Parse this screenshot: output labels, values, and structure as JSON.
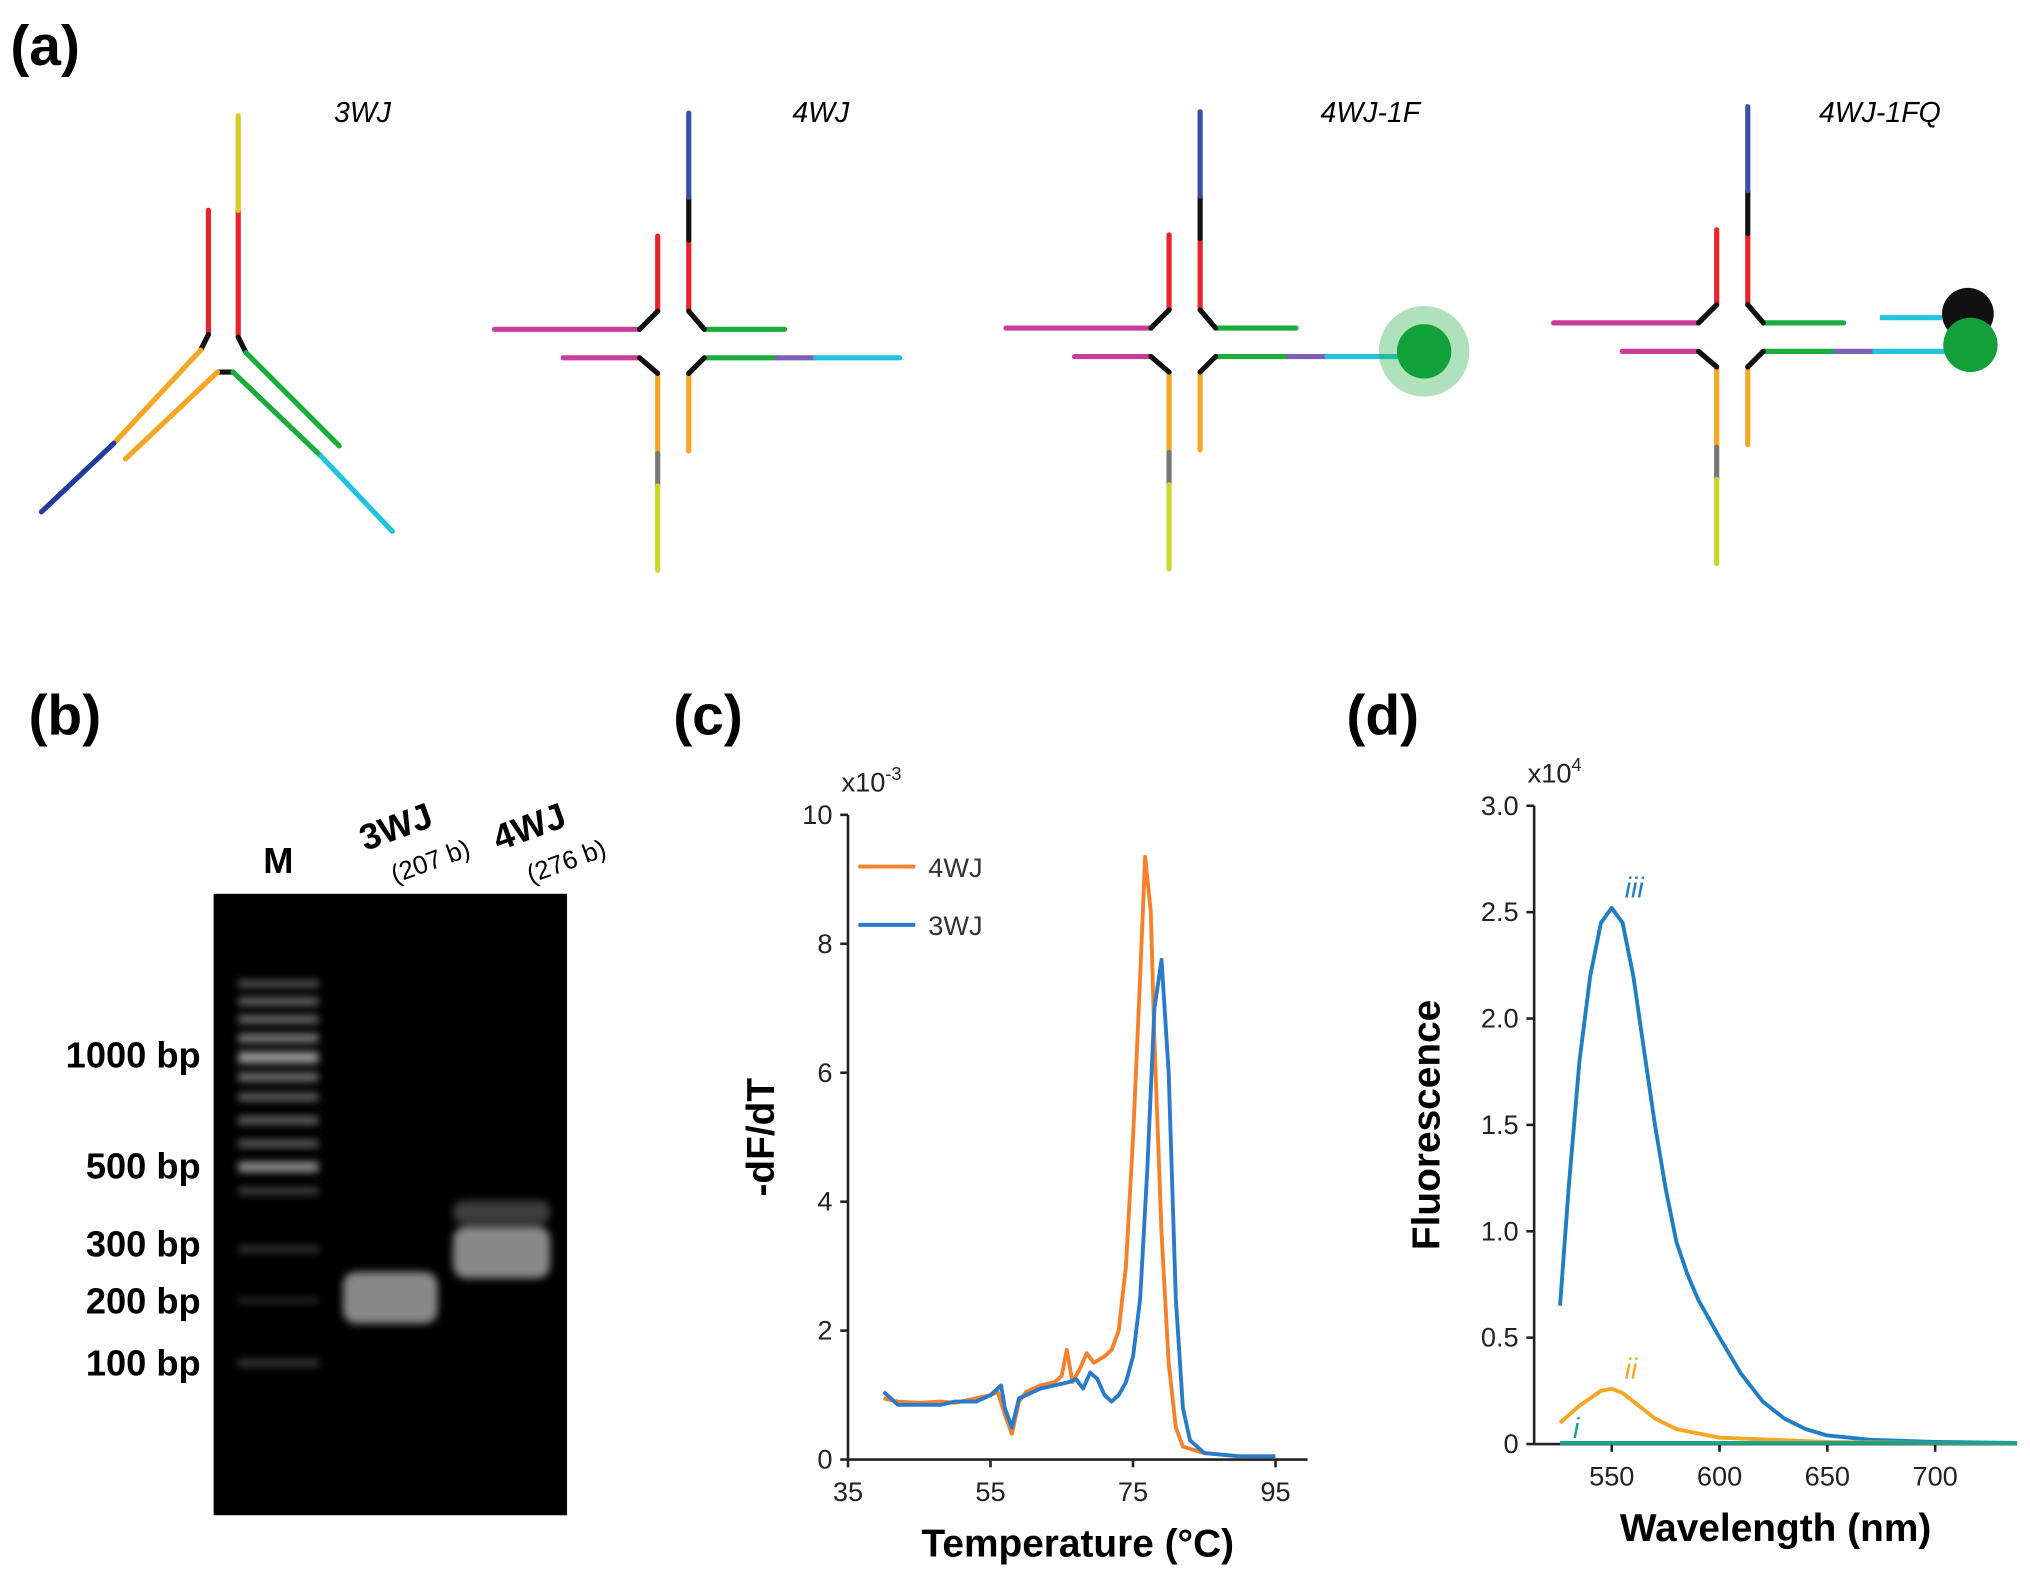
{
  "panels": [
    "(a)",
    "(b)",
    "(c)",
    "(d)"
  ],
  "diagram": {
    "labels": [
      "3WJ",
      "4WJ",
      "4WJ-1F",
      "4WJ-1FQ"
    ]
  },
  "gel": {
    "lanes": [
      "M",
      "3WJ",
      "4WJ"
    ],
    "lane_sizes": [
      "(207 b)",
      "(276 b)"
    ],
    "ladder": [
      "1000 bp",
      "500 bp",
      "300 bp",
      "200 bp",
      "100 bp"
    ]
  },
  "chart_data": [
    {
      "type": "line",
      "x_label": "Temperature (°C)",
      "y_label": "-dF/dT",
      "multiplier": {
        "base": "x10",
        "exponent": "-3"
      },
      "xlim": [
        35,
        99.5
      ],
      "ylim": [
        0,
        10
      ],
      "xticks": [
        35,
        55,
        75,
        95
      ],
      "yticks": [
        0,
        2,
        4,
        6,
        8,
        10
      ],
      "legend": "upper left",
      "series": [
        {
          "name": "4WJ",
          "color": "#f5822a",
          "x": [
            40,
            42,
            45,
            48,
            50,
            53,
            55,
            56,
            57,
            58,
            59,
            60,
            62,
            64,
            65,
            65.7,
            66.5,
            67.5,
            68.5,
            69.5,
            71,
            72,
            73,
            74,
            75,
            76,
            76.7,
            77.5,
            78,
            79,
            80,
            81,
            82,
            85,
            90,
            95
          ],
          "values": [
            0.95,
            0.9,
            0.88,
            0.9,
            0.88,
            0.95,
            1.0,
            1.05,
            0.7,
            0.4,
            0.9,
            1.05,
            1.15,
            1.2,
            1.3,
            1.7,
            1.2,
            1.4,
            1.65,
            1.5,
            1.6,
            1.7,
            2.0,
            3.0,
            5.0,
            7.5,
            9.35,
            8.5,
            6.5,
            3.5,
            1.5,
            0.5,
            0.2,
            0.1,
            0.05,
            0.05
          ]
        },
        {
          "name": "3WJ",
          "color": "#2a7bcc",
          "x": [
            40,
            42,
            45,
            48,
            50,
            53,
            55,
            56.5,
            57,
            58,
            59,
            60,
            62,
            64,
            66,
            67,
            68,
            69,
            70,
            71,
            72,
            73,
            74,
            75,
            76,
            77,
            78,
            79,
            80,
            81,
            82,
            83,
            85,
            90,
            95
          ],
          "values": [
            1.05,
            0.85,
            0.85,
            0.85,
            0.9,
            0.9,
            1.0,
            1.15,
            0.8,
            0.5,
            0.95,
            1.0,
            1.1,
            1.15,
            1.2,
            1.25,
            1.1,
            1.35,
            1.25,
            1.0,
            0.9,
            1.0,
            1.2,
            1.6,
            2.5,
            4.5,
            7.0,
            7.75,
            6.0,
            2.5,
            0.8,
            0.3,
            0.1,
            0.05,
            0.05
          ]
        }
      ]
    },
    {
      "type": "line",
      "x_label": "Wavelength (nm)",
      "y_label": "Fluorescence",
      "multiplier": {
        "base": "x10",
        "exponent": "4"
      },
      "xlim": [
        514,
        738
      ],
      "ylim": [
        0,
        3.0
      ],
      "xticks": [
        550,
        600,
        650,
        700
      ],
      "yticks": [
        0,
        {
          "value": 0.5,
          "label": "0.5"
        },
        {
          "value": 1.0,
          "label": "1.0"
        },
        {
          "value": 1.5,
          "label": "1.5"
        },
        {
          "value": 2.0,
          "label": "2.0"
        },
        {
          "value": 2.5,
          "label": "2.5"
        },
        {
          "value": 3.0,
          "label": "3.0"
        }
      ],
      "series": [
        {
          "name": "iii",
          "color": "#1f7fc0",
          "x": [
            526,
            530,
            535,
            540,
            545,
            550,
            555,
            560,
            565,
            570,
            575,
            580,
            585,
            590,
            600,
            610,
            620,
            630,
            640,
            650,
            670,
            700,
            738
          ],
          "values": [
            0.65,
            1.2,
            1.8,
            2.2,
            2.45,
            2.52,
            2.45,
            2.2,
            1.85,
            1.5,
            1.2,
            0.95,
            0.8,
            0.68,
            0.5,
            0.33,
            0.2,
            0.12,
            0.07,
            0.04,
            0.02,
            0.01,
            0.005
          ]
        },
        {
          "name": "ii",
          "color": "#f5a623",
          "x": [
            526,
            535,
            545,
            550,
            555,
            560,
            570,
            580,
            600,
            650,
            700,
            738
          ],
          "values": [
            0.1,
            0.18,
            0.25,
            0.26,
            0.24,
            0.2,
            0.12,
            0.07,
            0.03,
            0.01,
            0.005,
            0.005
          ]
        },
        {
          "name": "i",
          "color": "#1aa58a",
          "x": [
            526,
            600,
            700,
            738
          ],
          "values": [
            0.005,
            0.005,
            0.005,
            0.005
          ]
        }
      ]
    }
  ]
}
